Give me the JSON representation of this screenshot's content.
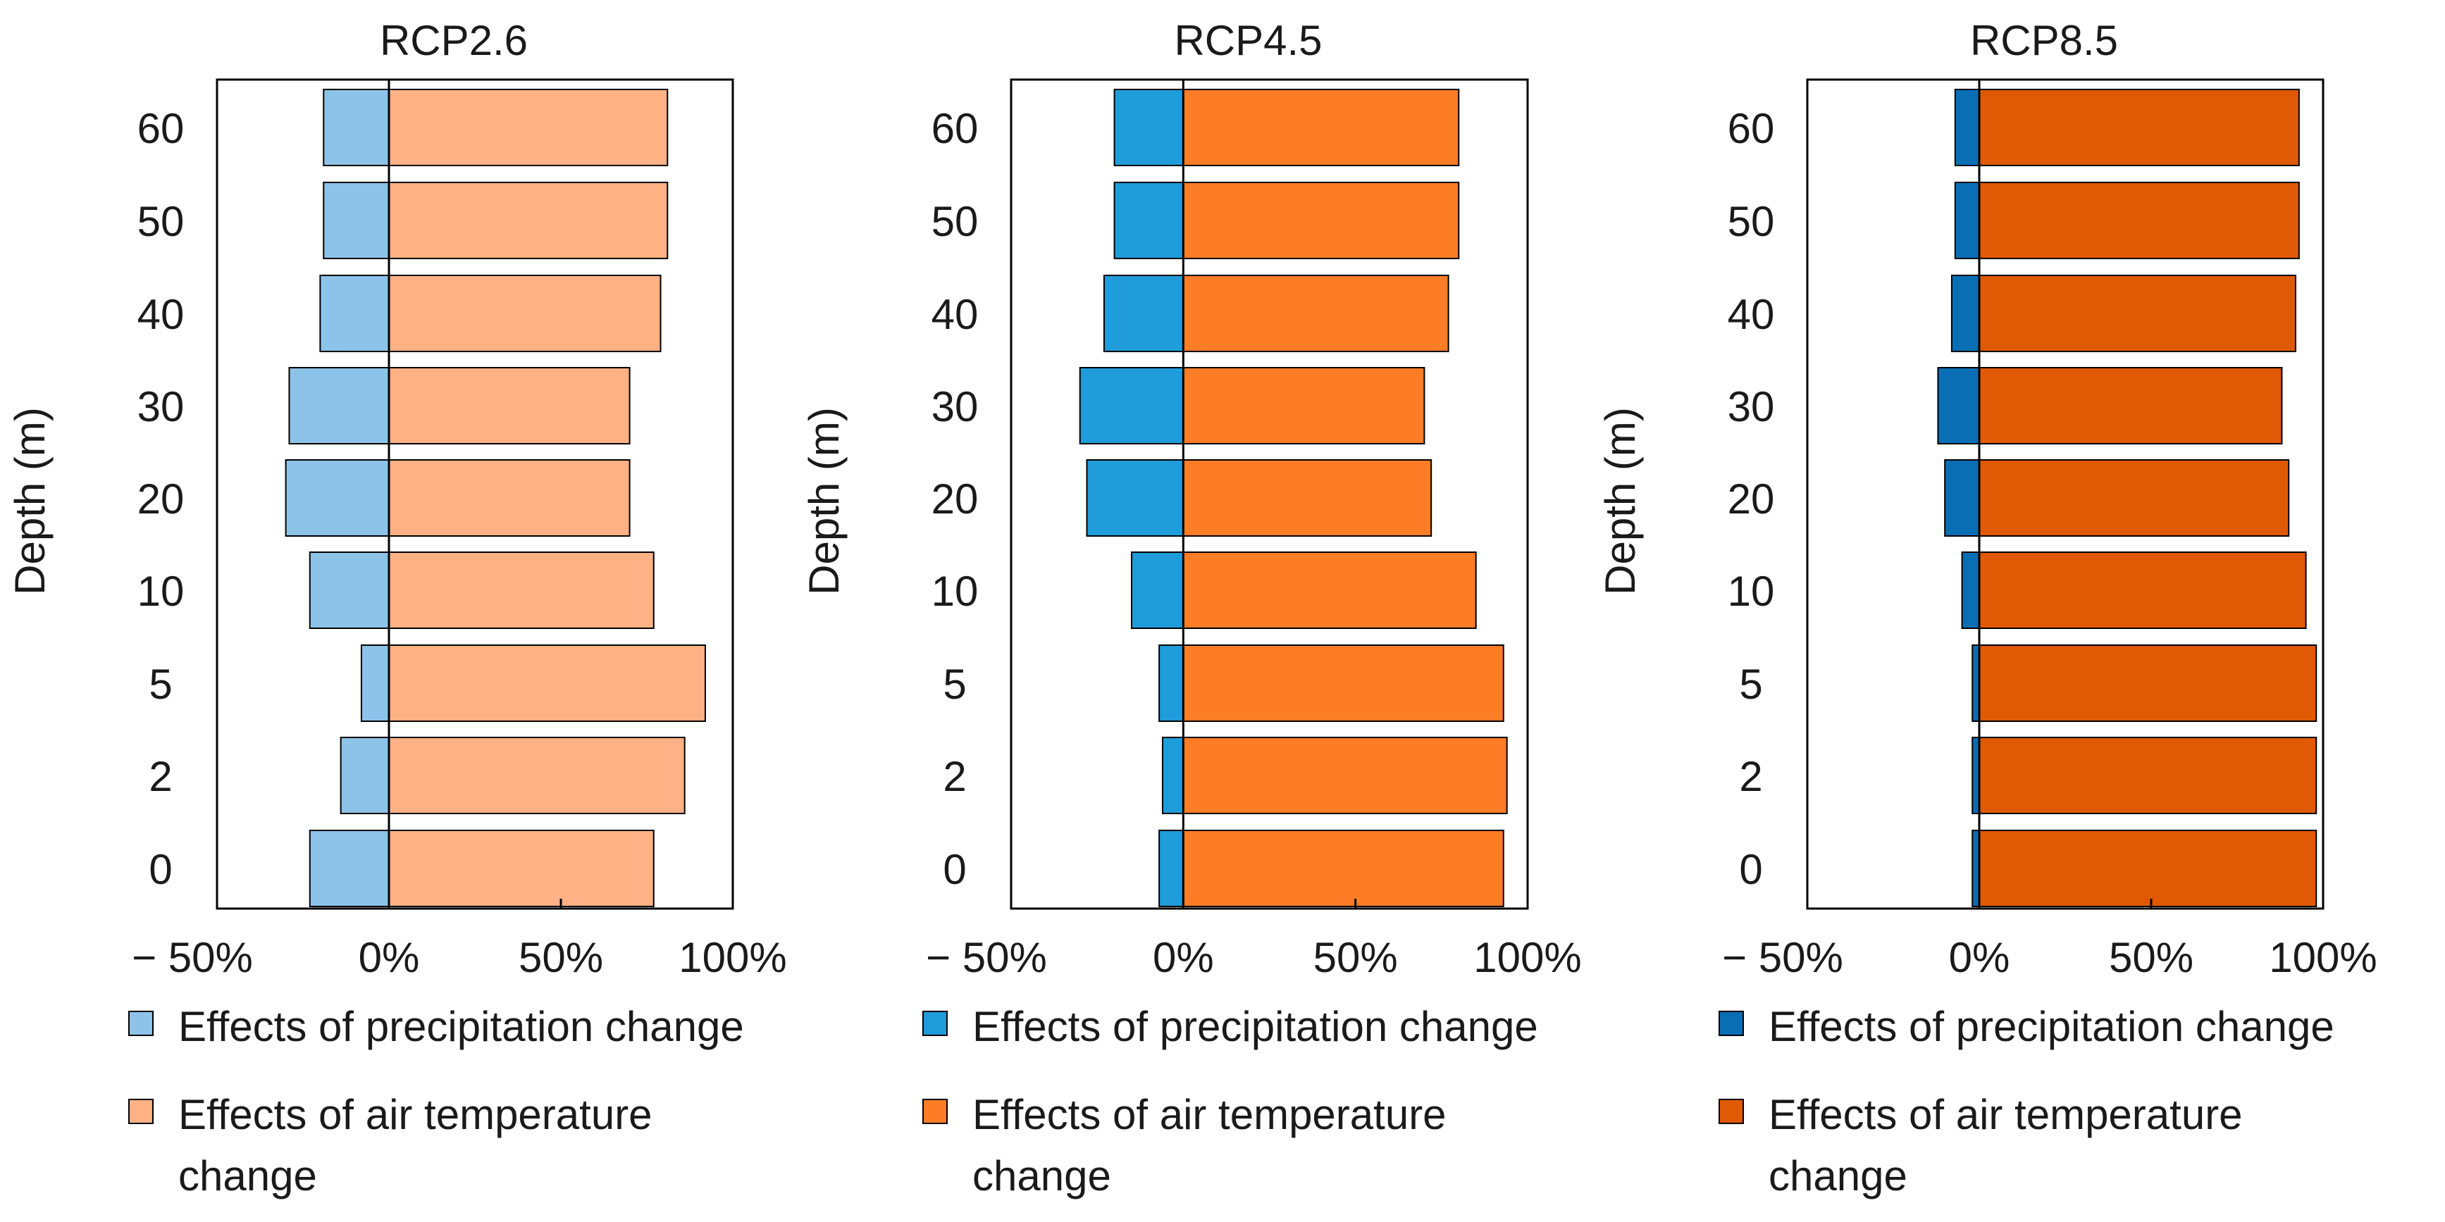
{
  "chart_data": [
    {
      "type": "bar",
      "orientation": "horizontal",
      "title": "RCP2.6",
      "ylabel": "Depth (m)",
      "categories": [
        "0",
        "2",
        "5",
        "10",
        "20",
        "30",
        "40",
        "50",
        "60"
      ],
      "xlim": [
        -50,
        100
      ],
      "xticks": [
        -50,
        0,
        50,
        100
      ],
      "xtick_labels": [
        "− 50%",
        "0%",
        "50%",
        "100%"
      ],
      "series": [
        {
          "name": "Effects of precipitation change",
          "color": "#8dc3e8",
          "values": [
            -23,
            -14,
            -8,
            -23,
            -30,
            -29,
            -20,
            -19,
            -19
          ]
        },
        {
          "name": "Effects of air temperature change",
          "color": "#fdb184",
          "values": [
            77,
            86,
            92,
            77,
            70,
            70,
            79,
            81,
            81
          ]
        }
      ],
      "legend": {
        "position": "bottom",
        "labels": [
          "Effects of precipitation change",
          "Effects of air temperature",
          "change"
        ]
      }
    },
    {
      "type": "bar",
      "orientation": "horizontal",
      "title": "RCP4.5",
      "ylabel": "Depth (m)",
      "categories": [
        "0",
        "2",
        "5",
        "10",
        "20",
        "30",
        "40",
        "50",
        "60"
      ],
      "xlim": [
        -50,
        100
      ],
      "xticks": [
        -50,
        0,
        50,
        100
      ],
      "xtick_labels": [
        "− 50%",
        "0%",
        "50%",
        "100%"
      ],
      "series": [
        {
          "name": "Effects of precipitation change",
          "color": "#1f9cd9",
          "values": [
            -7,
            -6,
            -7,
            -15,
            -28,
            -30,
            -23,
            -20,
            -20
          ]
        },
        {
          "name": "Effects of air temperature change",
          "color": "#fd7c26",
          "values": [
            93,
            94,
            93,
            85,
            72,
            70,
            77,
            80,
            80
          ]
        }
      ],
      "legend": {
        "position": "bottom",
        "labels": [
          "Effects of precipitation change",
          "Effects of air temperature",
          "change"
        ]
      }
    },
    {
      "type": "bar",
      "orientation": "horizontal",
      "title": "RCP8.5",
      "ylabel": "Depth (m)",
      "categories": [
        "0",
        "2",
        "5",
        "10",
        "20",
        "30",
        "40",
        "50",
        "60"
      ],
      "xlim": [
        -50,
        100
      ],
      "xticks": [
        -50,
        0,
        50,
        100
      ],
      "xtick_labels": [
        "− 50%",
        "0%",
        "50%",
        "100%"
      ],
      "series": [
        {
          "name": "Effects of precipitation change",
          "color": "#0a6eb5",
          "values": [
            -2,
            -2,
            -2,
            -5,
            -10,
            -12,
            -8,
            -7,
            -7
          ]
        },
        {
          "name": "Effects of air temperature change",
          "color": "#e05a05",
          "values": [
            98,
            98,
            98,
            95,
            90,
            88,
            92,
            93,
            93
          ]
        }
      ],
      "legend": {
        "position": "bottom",
        "labels": [
          "Effects of precipitation change",
          "Effects of air temperature",
          "change"
        ]
      }
    }
  ]
}
